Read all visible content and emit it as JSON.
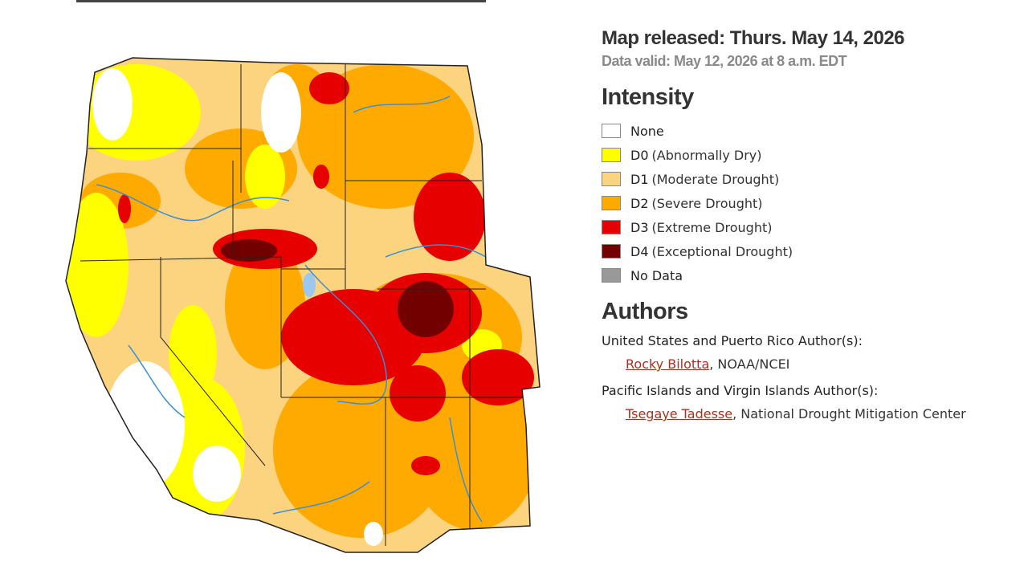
{
  "header": {
    "map_released": "Map released: Thurs. May 14, 2026",
    "data_valid": "Data valid: May 12, 2026 at 8 a.m. EDT"
  },
  "legend": {
    "title": "Intensity",
    "items": [
      {
        "code": "None",
        "color": "#ffffff"
      },
      {
        "code": "D0",
        "description": "(Abnormally Dry)",
        "color": "#ffff00"
      },
      {
        "code": "D1",
        "description": "(Moderate Drought)",
        "color": "#fcd37f"
      },
      {
        "code": "D2",
        "description": "(Severe Drought)",
        "color": "#ffaa00"
      },
      {
        "code": "D3",
        "description": "(Extreme Drought)",
        "color": "#e60000"
      },
      {
        "code": "D4",
        "description": "(Exceptional Drought)",
        "color": "#730000"
      },
      {
        "code": "No Data",
        "color": "#999999"
      }
    ]
  },
  "authors": {
    "title": "Authors",
    "groups": [
      {
        "label": "United States and Puerto Rico Author(s):",
        "name": "Rocky Bilotta",
        "affiliation": ", NOAA/NCEI"
      },
      {
        "label": "Pacific Islands and Virgin Islands Author(s):",
        "name": "Tsegaye Tadesse",
        "affiliation": ", National Drought Mitigation Center"
      }
    ]
  }
}
